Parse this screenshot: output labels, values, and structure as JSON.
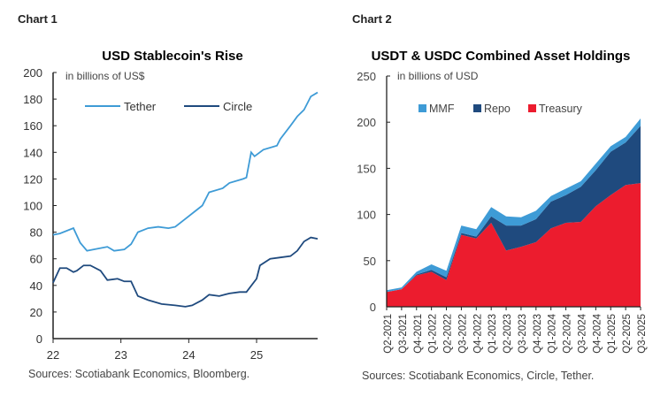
{
  "chart1_label": "Chart 1",
  "chart2_label": "Chart 2",
  "colors": {
    "tether": "#3e9bd6",
    "circle": "#1f4a7e",
    "mmf": "#3e9bd6",
    "repo": "#1f4a7e",
    "treasury": "#ec1c2e"
  },
  "chart_data": [
    {
      "type": "line",
      "title": "USD Stablecoin's Rise",
      "ylabel": "in billions of US$",
      "ylim": [
        0,
        200
      ],
      "yticks": [
        "0",
        "20",
        "40",
        "60",
        "80",
        "100",
        "120",
        "140",
        "160",
        "180",
        "200"
      ],
      "xlim": [
        22,
        25.9
      ],
      "xticks": [
        "22",
        "23",
        "24",
        "25"
      ],
      "legend": "top",
      "source": "Sources: Scotiabank Economics, Bloomberg.",
      "series": [
        {
          "name": "Tether",
          "x": [
            22.0,
            22.1,
            22.3,
            22.4,
            22.5,
            22.6,
            22.8,
            22.9,
            23.05,
            23.15,
            23.25,
            23.4,
            23.55,
            23.7,
            23.8,
            23.95,
            24.1,
            24.2,
            24.3,
            24.5,
            24.6,
            24.8,
            24.85,
            24.92,
            24.97,
            25.1,
            25.3,
            25.35,
            25.5,
            25.6,
            25.7,
            25.8,
            25.9
          ],
          "y": [
            78,
            79,
            83,
            72,
            66,
            67,
            69,
            66,
            67,
            71,
            80,
            83,
            84,
            83,
            84,
            90,
            96,
            100,
            110,
            113,
            117,
            120,
            121,
            140,
            137,
            142,
            145,
            150,
            160,
            167,
            172,
            182,
            185
          ]
        },
        {
          "name": "Circle",
          "x": [
            22.0,
            22.1,
            22.2,
            22.3,
            22.35,
            22.45,
            22.55,
            22.7,
            22.8,
            22.95,
            23.05,
            23.15,
            23.25,
            23.4,
            23.6,
            23.8,
            23.95,
            24.05,
            24.2,
            24.3,
            24.45,
            24.6,
            24.75,
            24.85,
            25.0,
            25.05,
            25.2,
            25.35,
            25.5,
            25.6,
            25.7,
            25.8,
            25.9
          ],
          "y": [
            42,
            53,
            53,
            50,
            51,
            55,
            55,
            51,
            44,
            45,
            43,
            43,
            32,
            29,
            26,
            25,
            24,
            25,
            29,
            33,
            32,
            34,
            35,
            35,
            45,
            55,
            60,
            61,
            62,
            66,
            73,
            76,
            75
          ]
        }
      ]
    },
    {
      "type": "area",
      "stacked": true,
      "title": "USDT & USDC Combined Asset Holdings",
      "ylabel": "in billions of USD",
      "ylim": [
        0,
        250
      ],
      "yticks": [
        "0",
        "50",
        "100",
        "150",
        "200",
        "250"
      ],
      "legend": "top",
      "source": "Sources: Scotiabank Economics, Circle, Tether.",
      "categories": [
        "Q2-2021",
        "Q3-2021",
        "Q4-2021",
        "Q1-2022",
        "Q2-2022",
        "Q3-2022",
        "Q4-2022",
        "Q1-2023",
        "Q2-2023",
        "Q3-2023",
        "Q4-2023",
        "Q1-2024",
        "Q2-2024",
        "Q3-2024",
        "Q4-2024",
        "Q1-2025",
        "Q2-2025",
        "Q3-2025"
      ],
      "series": [
        {
          "name": "Treasury",
          "values": [
            16,
            19,
            34,
            38,
            29,
            78,
            74,
            91,
            61,
            65,
            70,
            85,
            91,
            92,
            109,
            121,
            132,
            134
          ]
        },
        {
          "name": "Repo",
          "values": [
            0,
            0,
            1,
            2,
            3,
            2,
            2,
            7,
            27,
            23,
            25,
            29,
            30,
            38,
            39,
            47,
            46,
            62
          ]
        },
        {
          "name": "MMF",
          "values": [
            2,
            2,
            3,
            6,
            7,
            8,
            8,
            10,
            10,
            9,
            9,
            6,
            7,
            6,
            7,
            6,
            6,
            8
          ]
        }
      ]
    }
  ]
}
